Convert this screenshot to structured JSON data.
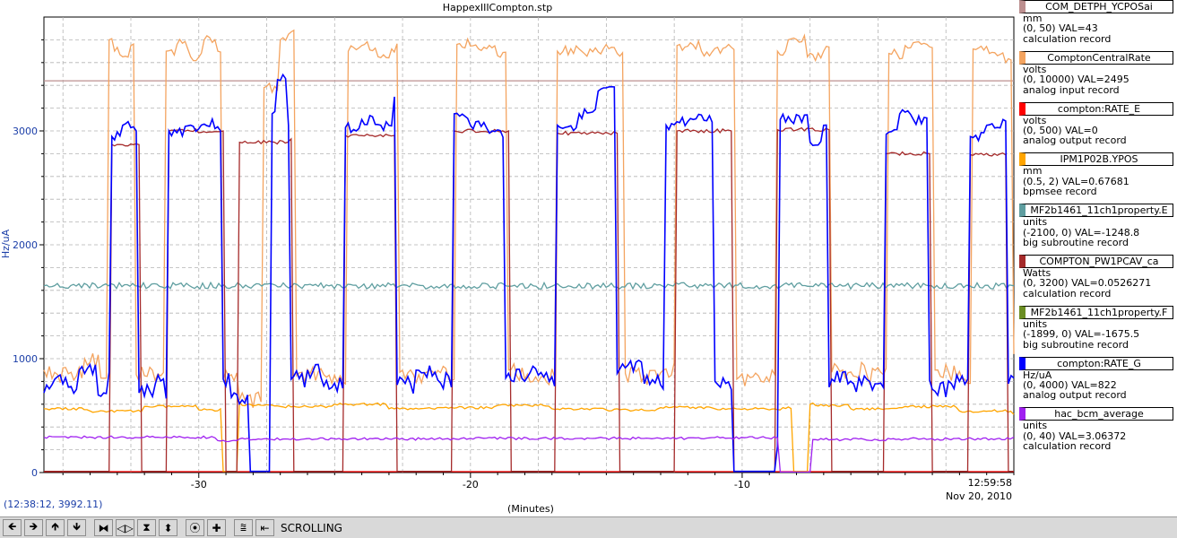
{
  "window": {
    "title": "HappexIIICompton.stp"
  },
  "coordinate_readout": "(12:38:12, 3992.11)",
  "toolbar": {
    "buttons": [
      {
        "name": "scroll-left-button",
        "glyph": "🡸"
      },
      {
        "name": "scroll-right-button",
        "glyph": "🡺"
      },
      {
        "name": "scroll-up-button",
        "glyph": "🡹"
      },
      {
        "name": "scroll-down-button",
        "glyph": "🡻"
      },
      {
        "name": "compress-x-button",
        "glyph": "⧓"
      },
      {
        "name": "expand-x-button",
        "glyph": "◁▷"
      },
      {
        "name": "compress-y-button",
        "glyph": "⧗"
      },
      {
        "name": "expand-y-button",
        "glyph": "⬍"
      },
      {
        "name": "autoscale-button",
        "glyph": "⦿"
      },
      {
        "name": "zoom-button",
        "glyph": "✚"
      },
      {
        "name": "stagger-button",
        "glyph": "⩰"
      },
      {
        "name": "go-to-now-button",
        "glyph": "⇤"
      }
    ],
    "status": "SCROLLING"
  },
  "legend": [
    {
      "name": "COM_DETPH_YCPOSai",
      "color": "#bc8f8f",
      "unit": "mm",
      "range": "(0, 50)  VAL=43",
      "rtype": "calculation record"
    },
    {
      "name": "ComptonCentralRate",
      "color": "#f4a460",
      "unit": "volts",
      "range": "(0, 10000) VAL=2495",
      "rtype": "analog input record"
    },
    {
      "name": "compton:RATE_E",
      "color": "#ff0000",
      "unit": "volts",
      "range": "(0, 500)  VAL=0",
      "rtype": "analog output record"
    },
    {
      "name": "IPM1P02B.YPOS",
      "color": "#ffa500",
      "unit": "mm",
      "range": "(0.5, 2) VAL=0.67681",
      "rtype": "bpmsee record"
    },
    {
      "name": "MF2b1461_11ch1property.E",
      "color": "#5f9ea0",
      "unit": "units",
      "range": "(-2100, 0) VAL=-1248.8",
      "rtype": "big subroutine record"
    },
    {
      "name": "COMPTON_PW1PCAV_ca",
      "color": "#a52a2a",
      "unit": "Watts",
      "range": "(0, 3200) VAL=0.0526271",
      "rtype": "calculation record"
    },
    {
      "name": "MF2b1461_11ch1property.F",
      "color": "#6b8e23",
      "unit": "units",
      "range": "(-1899, 0)  VAL=-1675.5",
      "rtype": "big subroutine record"
    },
    {
      "name": "compton:RATE_G",
      "color": "#0000ff",
      "unit": "Hz/uA",
      "range": "(0, 4000) VAL=822",
      "rtype": "analog output record"
    },
    {
      "name": "hac_bcm_average",
      "color": "#a020f0",
      "unit": "units",
      "range": "(0, 40) VAL=3.06372",
      "rtype": "calculation record"
    }
  ],
  "chart_data": {
    "type": "line",
    "title": "HappexIIICompton.stp",
    "xlabel": "(Minutes)",
    "ylabel": "Hz/uA",
    "xlim": [
      -35.7,
      0
    ],
    "ylim": [
      0,
      4000
    ],
    "x_ticks": [
      -30,
      -20,
      -10
    ],
    "y_ticks": [
      0,
      1000,
      2000,
      3000
    ],
    "end_time_label": "12:59:58",
    "end_date_label": "Nov 20, 2010",
    "grid": true,
    "beam_on_intervals": [
      [
        -33.2,
        -32.2
      ],
      [
        -31.1,
        -29.1
      ],
      [
        -28.5,
        -26.6
      ],
      [
        -24.6,
        -22.8
      ],
      [
        -20.6,
        -18.6
      ],
      [
        -16.8,
        -14.6
      ],
      [
        -12.4,
        -10.4
      ],
      [
        -8.7,
        -6.8
      ],
      [
        -4.7,
        -3.1
      ],
      [
        -1.6,
        -0.3
      ]
    ],
    "series": [
      {
        "name": "COM_DETPH_YCPOSai",
        "color": "#bc8f8f",
        "x": [
          -35.7,
          0
        ],
        "values": [
          3440,
          3440
        ]
      },
      {
        "name": "ComptonCentralRate",
        "color": "#f4a460",
        "x": [
          -35.7,
          -35.2,
          -34.7,
          -34.2,
          -33.6,
          -33.3,
          -33.1,
          -32.8,
          -32.5,
          -32.3,
          -32.0,
          -31.4,
          -31.2,
          -30.8,
          -30.3,
          -29.8,
          -29.3,
          -29.1,
          -28.8,
          -28.5,
          -27.6,
          -27.0,
          -26.7,
          -26.4,
          -25.9,
          -25.4,
          -24.8,
          -24.5,
          -24.0,
          -23.4,
          -22.9,
          -22.6,
          -22.1,
          -21.5,
          -20.8,
          -20.5,
          -19.7,
          -19.0,
          -18.6,
          -18.3,
          -17.7,
          -17.0,
          -16.8,
          -15.6,
          -14.6,
          -14.3,
          -13.6,
          -12.9,
          -12.4,
          -11.5,
          -10.5,
          -10.2,
          -9.4,
          -8.9,
          -8.7,
          -8.3,
          -7.6,
          -7.0,
          -6.7,
          -6.3,
          -5.4,
          -4.8,
          -4.6,
          -4.0,
          -3.2,
          -2.9,
          -2.4,
          -1.8,
          -1.5,
          -0.9,
          -0.3,
          0
        ],
        "values": [
          900,
          860,
          880,
          1000,
          830,
          3800,
          3700,
          3650,
          3750,
          860,
          850,
          850,
          3700,
          3760,
          3650,
          3800,
          3700,
          820,
          860,
          640,
          3380,
          3800,
          3850,
          850,
          870,
          860,
          850,
          3700,
          3750,
          3650,
          3720,
          880,
          860,
          900,
          820,
          3760,
          3720,
          3660,
          900,
          850,
          800,
          910,
          3700,
          3720,
          3680,
          870,
          850,
          900,
          3750,
          3700,
          3760,
          820,
          850,
          900,
          3700,
          3800,
          3650,
          3700,
          880,
          900,
          850,
          860,
          3680,
          3750,
          3760,
          900,
          880,
          820,
          3720,
          3680,
          3600,
          1040
        ]
      },
      {
        "name": "compton:RATE_E",
        "color": "#ff0000",
        "x": [
          -35.7,
          0
        ],
        "values": [
          8,
          8
        ]
      },
      {
        "name": "IPM1P02B.YPOS",
        "color": "#ffa500",
        "x": [
          -35.7,
          -34,
          -32,
          -30,
          -29.2,
          -29.1,
          -28.9,
          -28.5,
          -28.4,
          -27,
          -25,
          -23,
          -21,
          -19,
          -17,
          -15,
          -13,
          -11,
          -9,
          -8.5,
          -8.1,
          -7.7,
          -7.5,
          -7.3,
          -6,
          -4,
          -2,
          0
        ],
        "values": [
          560,
          540,
          580,
          550,
          560,
          10,
          10,
          620,
          590,
          580,
          600,
          560,
          570,
          590,
          560,
          550,
          570,
          560,
          550,
          570,
          10,
          10,
          600,
          590,
          560,
          580,
          540,
          510
        ]
      },
      {
        "name": "MF2b1461_11ch1property.E",
        "color": "#5f9ea0",
        "x": [
          -35.7,
          0
        ],
        "values": [
          1640,
          1640
        ]
      },
      {
        "name": "COMPTON_PW1PCAV_ca",
        "color": "#a52a2a",
        "x": [
          -35.7,
          -33.3,
          -33.2,
          -32.2,
          -32.1,
          -31.2,
          -31.1,
          -29.1,
          -29.0,
          -28.6,
          -28.5,
          -26.6,
          -26.5,
          -24.7,
          -24.6,
          -22.8,
          -22.7,
          -20.7,
          -20.6,
          -18.6,
          -18.5,
          -16.9,
          -16.8,
          -14.6,
          -14.5,
          -12.5,
          -12.4,
          -10.4,
          -10.3,
          -8.8,
          -8.7,
          -6.8,
          -6.7,
          -4.8,
          -4.7,
          -3.1,
          -3.0,
          -1.7,
          -1.6,
          -0.3,
          -0.2,
          0
        ],
        "values": [
          10,
          10,
          2880,
          2880,
          10,
          10,
          3000,
          3000,
          10,
          10,
          2900,
          2930,
          10,
          10,
          2960,
          2960,
          10,
          10,
          3000,
          3000,
          10,
          10,
          2980,
          2980,
          10,
          10,
          3000,
          3000,
          10,
          10,
          3010,
          3010,
          10,
          10,
          2800,
          2800,
          10,
          10,
          2790,
          2790,
          10,
          10
        ]
      },
      {
        "name": "compton:RATE_G",
        "color": "#0000ff",
        "x": [
          -35.7,
          -35.3,
          -34.8,
          -34.4,
          -33.7,
          -33.3,
          -33.2,
          -32.8,
          -32.3,
          -32.2,
          -31.6,
          -31.2,
          -31.1,
          -30.5,
          -29.8,
          -29.2,
          -29.1,
          -28.8,
          -28.1,
          -27.6,
          -27.3,
          -27.1,
          -26.7,
          -26.6,
          -26.0,
          -25.4,
          -24.7,
          -24.6,
          -24.0,
          -23.3,
          -22.8,
          -22.7,
          -22.0,
          -21.2,
          -20.7,
          -20.6,
          -20.0,
          -19.3,
          -18.7,
          -18.6,
          -17.8,
          -17.1,
          -16.8,
          -16.0,
          -15.3,
          -14.6,
          -14.5,
          -13.6,
          -12.8,
          -12.4,
          -11.8,
          -11.0,
          -10.4,
          -10.3,
          -9.4,
          -8.7,
          -8.6,
          -7.5,
          -7.0,
          -6.8,
          -6.7,
          -5.9,
          -5.0,
          -4.7,
          -4.2,
          -3.7,
          -3.1,
          -3.0,
          -2.3,
          -1.7,
          -1.6,
          -1.0,
          -0.4,
          -0.2,
          0
        ],
        "values": [
          700,
          820,
          750,
          900,
          680,
          880,
          2950,
          3050,
          3000,
          700,
          780,
          650,
          3000,
          3040,
          3060,
          3000,
          820,
          660,
          10,
          10,
          3150,
          3450,
          3050,
          820,
          900,
          760,
          740,
          3030,
          3100,
          3050,
          3300,
          770,
          900,
          810,
          750,
          3150,
          3050,
          2980,
          830,
          870,
          880,
          800,
          3050,
          3150,
          3350,
          870,
          910,
          780,
          3050,
          3080,
          3100,
          800,
          730,
          10,
          10,
          230,
          3100,
          2900,
          3050,
          750,
          820,
          780,
          780,
          2970,
          3150,
          3100,
          810,
          730,
          780,
          820,
          2950,
          3050,
          3100,
          780,
          830
        ]
      },
      {
        "name": "hac_bcm_average",
        "color": "#a020f0",
        "x": [
          -35.7,
          -32,
          -29.4,
          -29.3,
          -28.6,
          -28.5,
          -24,
          -20,
          -16,
          -12,
          -8.7,
          -8.6,
          -7.5,
          -7.4,
          -4,
          0
        ],
        "values": [
          310,
          310,
          305,
          280,
          280,
          295,
          295,
          300,
          300,
          305,
          305,
          5,
          5,
          290,
          295,
          310
        ]
      }
    ]
  }
}
